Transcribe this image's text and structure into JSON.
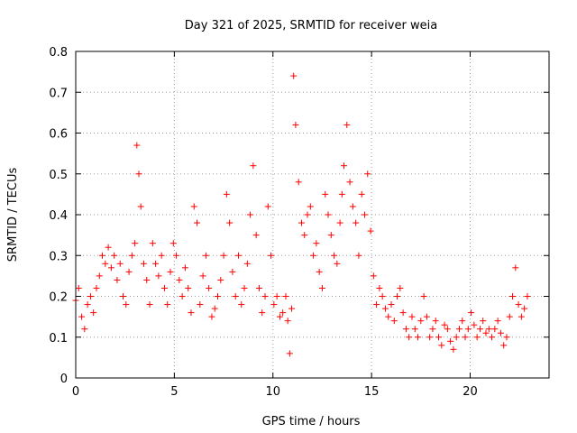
{
  "chart_data": {
    "type": "scatter",
    "title": "Day 321 of 2025, SRMTID for receiver weia",
    "xlabel": "GPS time / hours",
    "ylabel": "SRMTID / TECUs",
    "xlim": [
      0,
      24
    ],
    "ylim": [
      0,
      0.8
    ],
    "xticks": [
      0,
      5,
      10,
      15,
      20
    ],
    "yticks": [
      0,
      0.1,
      0.2,
      0.3,
      0.4,
      0.5,
      0.6,
      0.7,
      0.8
    ],
    "xtick_labels": [
      "0",
      "5",
      "10",
      "15",
      "20"
    ],
    "ytick_labels": [
      "0",
      "0.1",
      "0.2",
      "0.3",
      "0.4",
      "0.5",
      "0.6",
      "0.7",
      "0.8"
    ],
    "grid": true,
    "marker": "plus",
    "series_color": "#ff0000",
    "series": [
      {
        "name": "SRMTID",
        "x": [
          0.0,
          0.15,
          0.3,
          0.45,
          0.6,
          0.75,
          0.9,
          1.05,
          1.2,
          1.35,
          1.5,
          1.65,
          1.8,
          1.95,
          2.1,
          2.25,
          2.4,
          2.55,
          2.7,
          2.85,
          3.0,
          3.1,
          3.2,
          3.3,
          3.45,
          3.6,
          3.75,
          3.9,
          4.05,
          4.2,
          4.35,
          4.5,
          4.65,
          4.8,
          4.95,
          5.1,
          5.25,
          5.4,
          5.55,
          5.7,
          5.85,
          6.0,
          6.15,
          6.3,
          6.45,
          6.6,
          6.75,
          6.9,
          7.05,
          7.2,
          7.35,
          7.5,
          7.65,
          7.8,
          7.95,
          8.1,
          8.25,
          8.4,
          8.55,
          8.7,
          8.85,
          9.0,
          9.15,
          9.3,
          9.45,
          9.6,
          9.75,
          9.9,
          10.05,
          10.2,
          10.35,
          10.5,
          10.65,
          10.75,
          10.85,
          10.95,
          11.05,
          11.15,
          11.3,
          11.45,
          11.6,
          11.75,
          11.9,
          12.05,
          12.2,
          12.35,
          12.5,
          12.65,
          12.8,
          12.95,
          13.1,
          13.25,
          13.4,
          13.5,
          13.6,
          13.75,
          13.9,
          14.05,
          14.2,
          14.35,
          14.5,
          14.65,
          14.8,
          14.95,
          15.1,
          15.25,
          15.4,
          15.55,
          15.7,
          15.85,
          16.0,
          16.15,
          16.3,
          16.45,
          16.6,
          16.75,
          16.9,
          17.05,
          17.2,
          17.35,
          17.5,
          17.65,
          17.8,
          17.95,
          18.1,
          18.25,
          18.4,
          18.55,
          18.7,
          18.85,
          19.0,
          19.15,
          19.3,
          19.45,
          19.6,
          19.75,
          19.9,
          20.05,
          20.2,
          20.35,
          20.5,
          20.65,
          20.8,
          20.95,
          21.1,
          21.25,
          21.4,
          21.55,
          21.7,
          21.85,
          22.0,
          22.15,
          22.3,
          22.45,
          22.6,
          22.75,
          22.9
        ],
        "y": [
          0.19,
          0.22,
          0.15,
          0.12,
          0.18,
          0.2,
          0.16,
          0.22,
          0.25,
          0.3,
          0.28,
          0.32,
          0.27,
          0.3,
          0.24,
          0.28,
          0.2,
          0.18,
          0.26,
          0.3,
          0.33,
          0.57,
          0.5,
          0.42,
          0.28,
          0.24,
          0.18,
          0.33,
          0.28,
          0.25,
          0.3,
          0.22,
          0.18,
          0.26,
          0.33,
          0.3,
          0.24,
          0.2,
          0.27,
          0.22,
          0.16,
          0.42,
          0.38,
          0.18,
          0.25,
          0.3,
          0.22,
          0.15,
          0.17,
          0.2,
          0.24,
          0.3,
          0.45,
          0.38,
          0.26,
          0.2,
          0.3,
          0.18,
          0.22,
          0.28,
          0.4,
          0.52,
          0.35,
          0.22,
          0.16,
          0.2,
          0.42,
          0.3,
          0.18,
          0.2,
          0.15,
          0.16,
          0.2,
          0.14,
          0.06,
          0.17,
          0.74,
          0.62,
          0.48,
          0.38,
          0.35,
          0.4,
          0.42,
          0.3,
          0.33,
          0.26,
          0.22,
          0.45,
          0.4,
          0.35,
          0.3,
          0.28,
          0.38,
          0.45,
          0.52,
          0.62,
          0.48,
          0.42,
          0.38,
          0.3,
          0.45,
          0.4,
          0.5,
          0.36,
          0.25,
          0.18,
          0.22,
          0.2,
          0.17,
          0.15,
          0.18,
          0.14,
          0.2,
          0.22,
          0.16,
          0.12,
          0.1,
          0.15,
          0.12,
          0.1,
          0.14,
          0.2,
          0.15,
          0.1,
          0.12,
          0.14,
          0.1,
          0.08,
          0.13,
          0.12,
          0.09,
          0.07,
          0.1,
          0.12,
          0.14,
          0.1,
          0.12,
          0.16,
          0.13,
          0.1,
          0.12,
          0.14,
          0.11,
          0.12,
          0.1,
          0.12,
          0.14,
          0.11,
          0.08,
          0.1,
          0.15,
          0.2,
          0.27,
          0.18,
          0.15,
          0.17,
          0.2
        ]
      }
    ]
  }
}
